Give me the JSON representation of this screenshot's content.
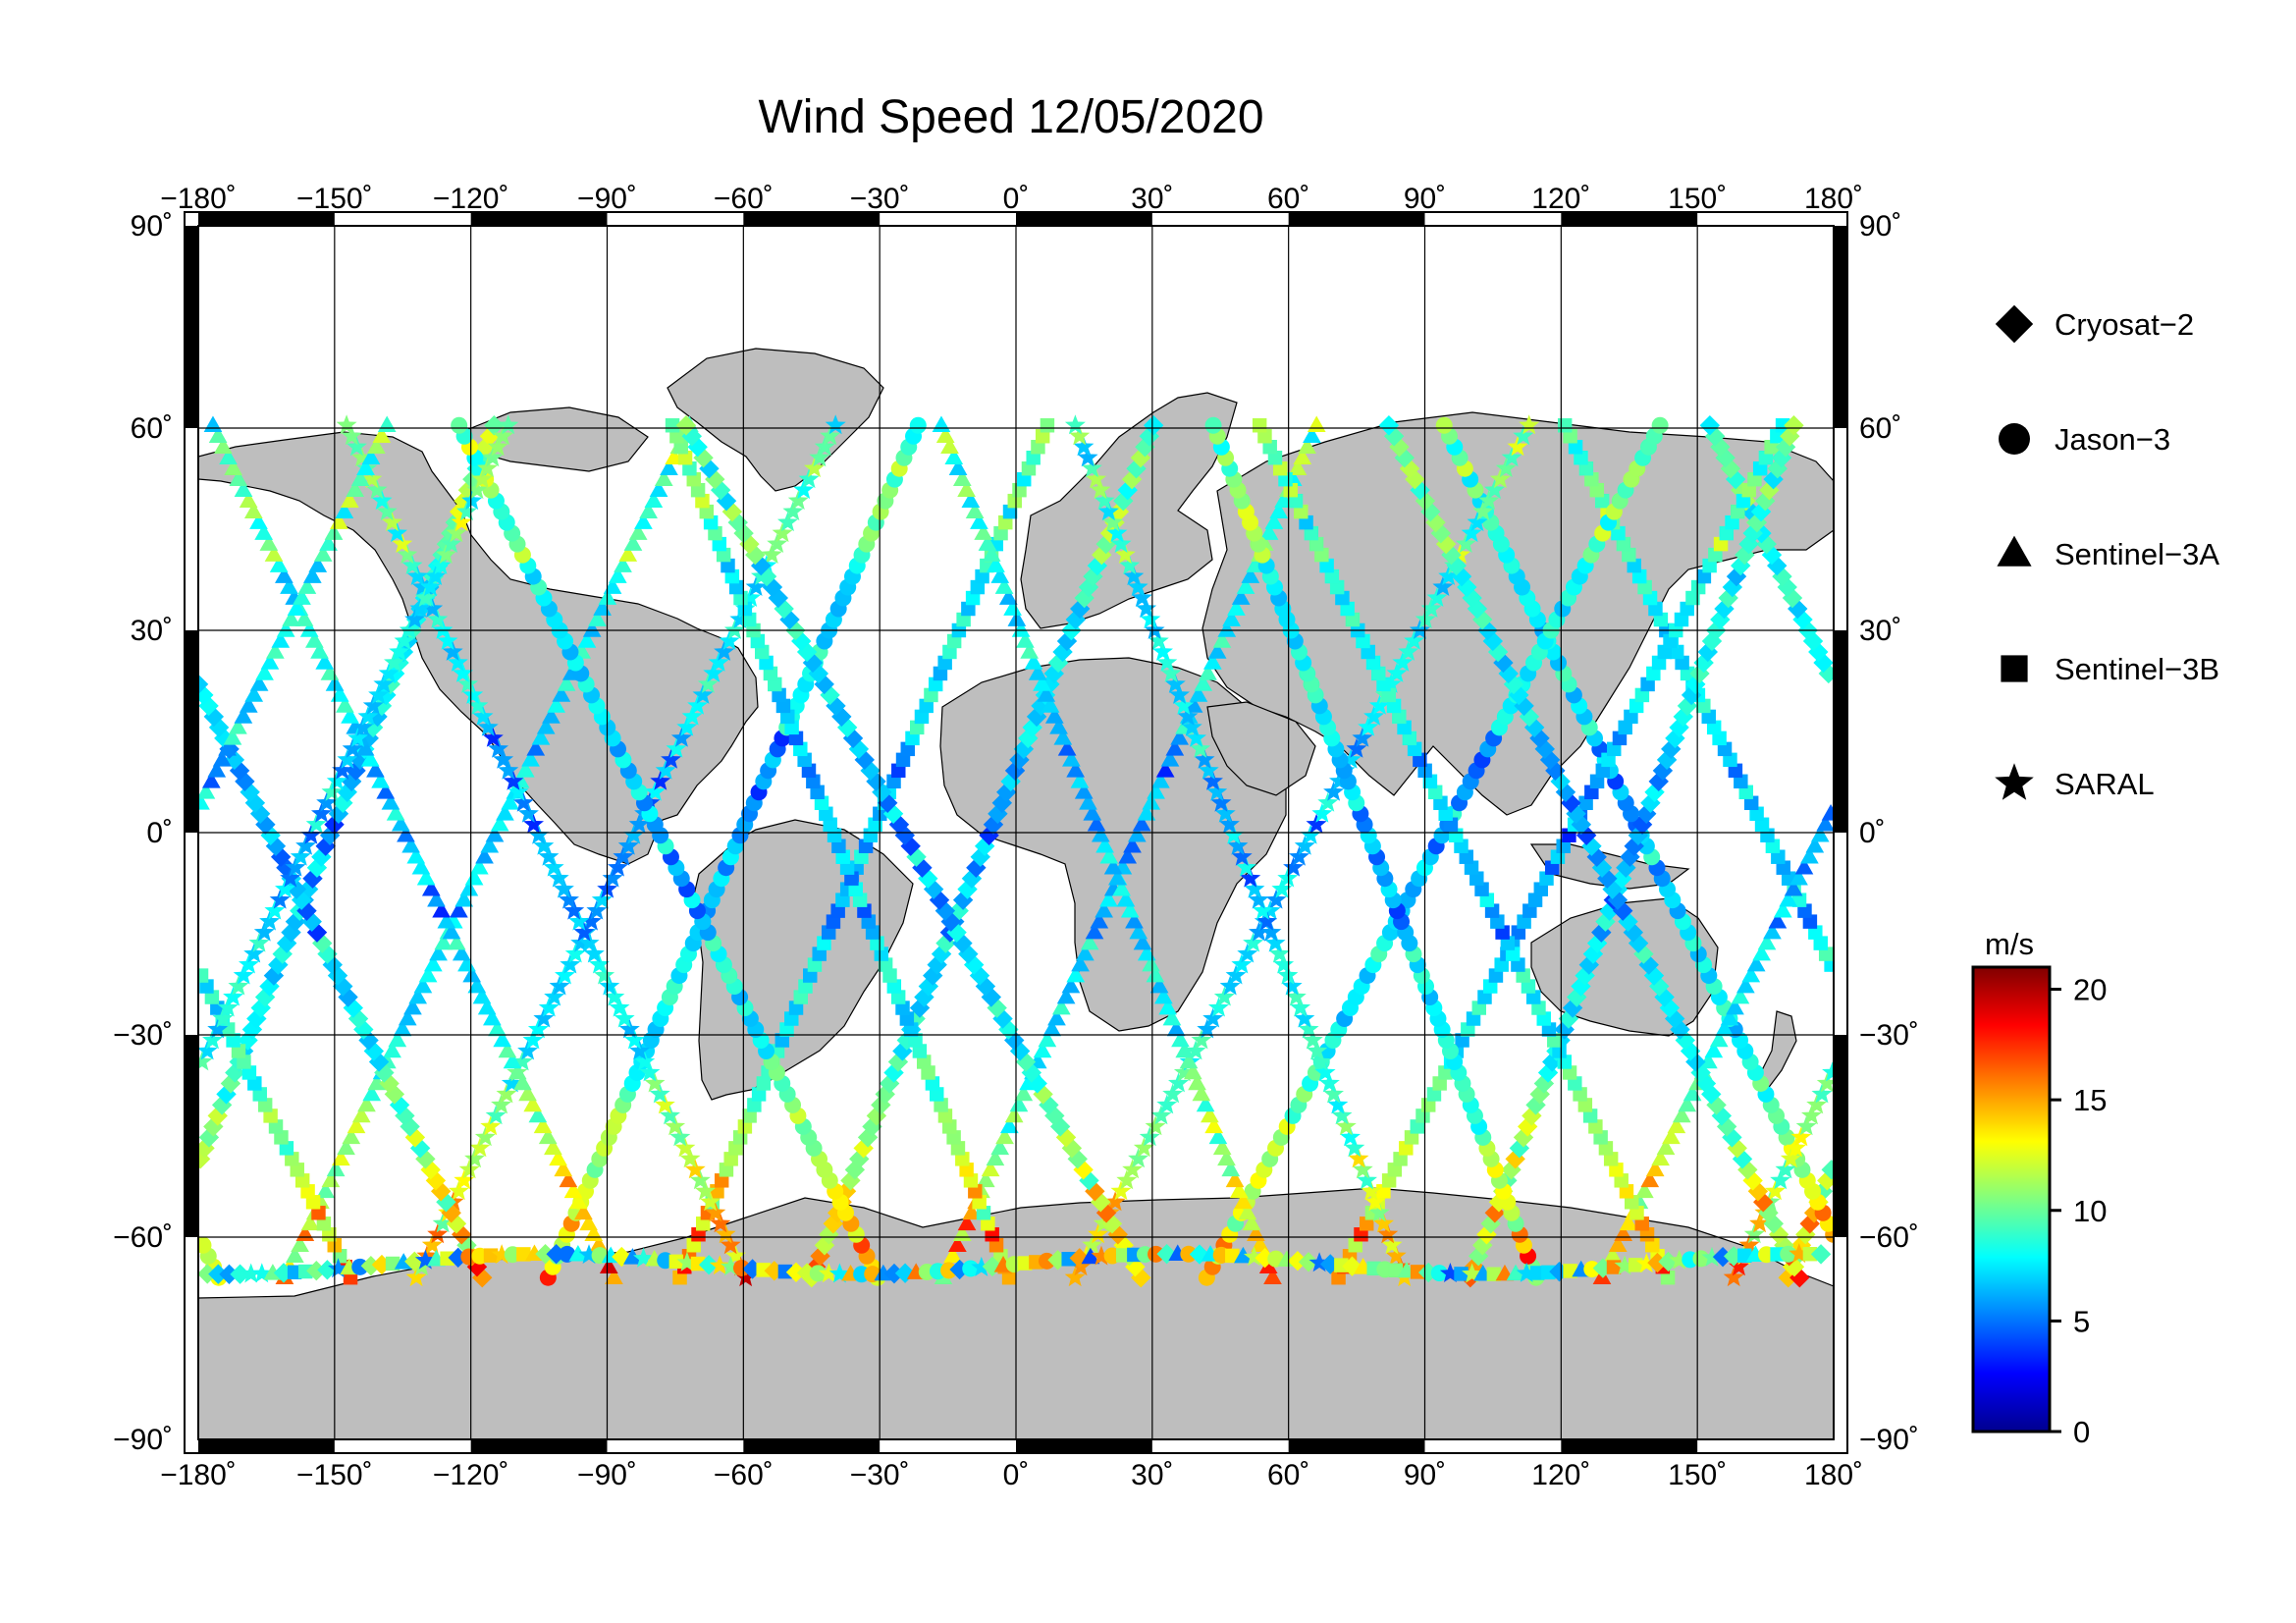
{
  "title": "Wind Speed 12/05/2020",
  "axes": {
    "lon_ticks": [
      -180,
      -150,
      -120,
      -90,
      -60,
      -30,
      0,
      30,
      60,
      90,
      120,
      150,
      180
    ],
    "lat_ticks": [
      90,
      60,
      30,
      0,
      -30,
      -60,
      -90
    ],
    "lon_labels": [
      "−180˚",
      "−150˚",
      "−120˚",
      "−90˚",
      "−60˚",
      "−30˚",
      "0˚",
      "30˚",
      "60˚",
      "90˚",
      "120˚",
      "150˚",
      "180˚"
    ],
    "lat_labels": [
      "90˚",
      "60˚",
      "30˚",
      "0˚",
      "−30˚",
      "−60˚",
      "−90˚"
    ],
    "lon_range": [
      -180,
      180
    ],
    "lat_range": [
      -90,
      90
    ],
    "grid": true
  },
  "legend": {
    "items": [
      {
        "label": "Cryosat−2",
        "symbol": "diamond"
      },
      {
        "label": "Jason−3",
        "symbol": "circle"
      },
      {
        "label": "Sentinel−3A",
        "symbol": "triangle"
      },
      {
        "label": "Sentinel−3B",
        "symbol": "square"
      },
      {
        "label": "SARAL",
        "symbol": "star"
      }
    ]
  },
  "colorbar": {
    "unit": "m/s",
    "min": 0,
    "max": 21,
    "ticks": [
      0,
      5,
      10,
      15,
      20
    ],
    "tick_labels": [
      "0",
      "5",
      "10",
      "15",
      "20"
    ],
    "colormap": [
      "#00008f",
      "#0000ff",
      "#0080ff",
      "#00ffff",
      "#80ff80",
      "#ffff00",
      "#ff8000",
      "#ff0000",
      "#800000"
    ]
  },
  "colors": {
    "land": "#bebebe",
    "ocean": "#ffffff",
    "grid": "#000000"
  }
}
